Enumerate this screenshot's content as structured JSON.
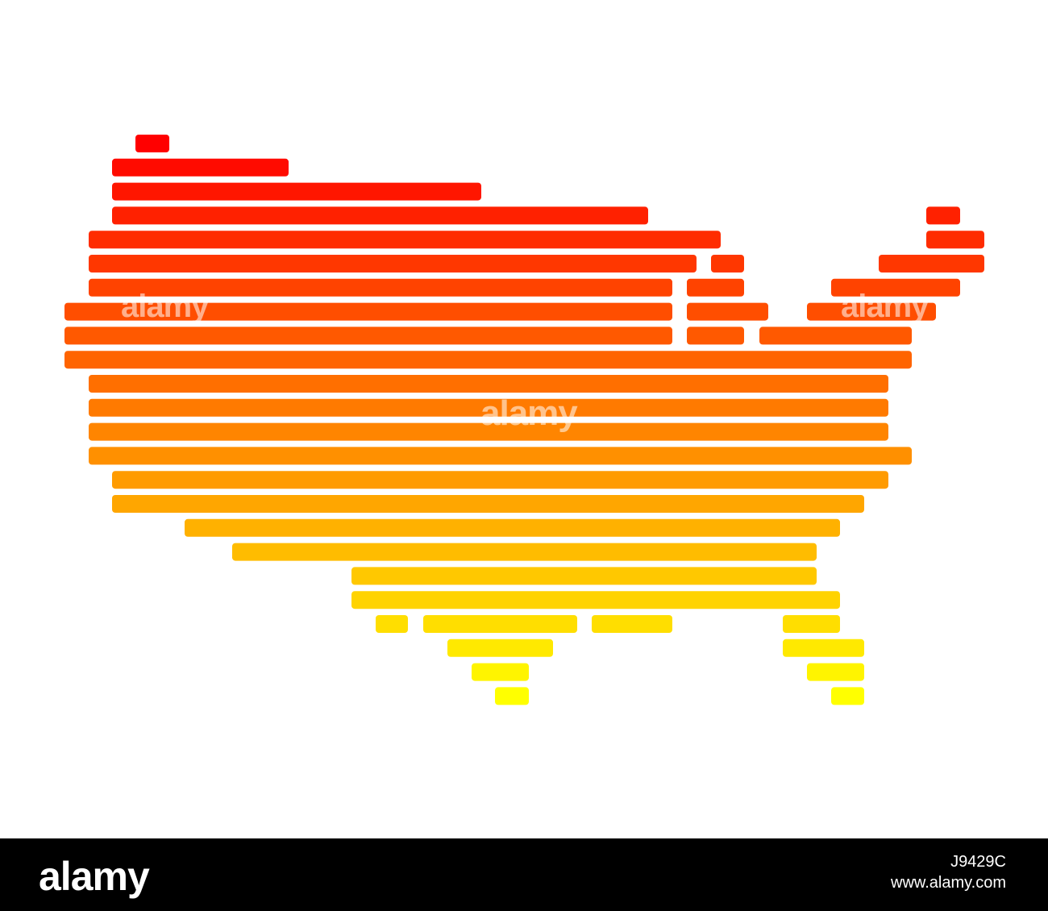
{
  "map": {
    "subject": "United States",
    "style": "horizontal rounded bar strips",
    "gradient_top_color": "#ff0000",
    "gradient_bottom_color": "#ffff00"
  },
  "watermark": {
    "center": "alamy",
    "left": "alamy",
    "right": "alamy"
  },
  "footer": {
    "logo": "alamy",
    "image_id": "J9429C",
    "url": "www.alamy.com"
  }
}
